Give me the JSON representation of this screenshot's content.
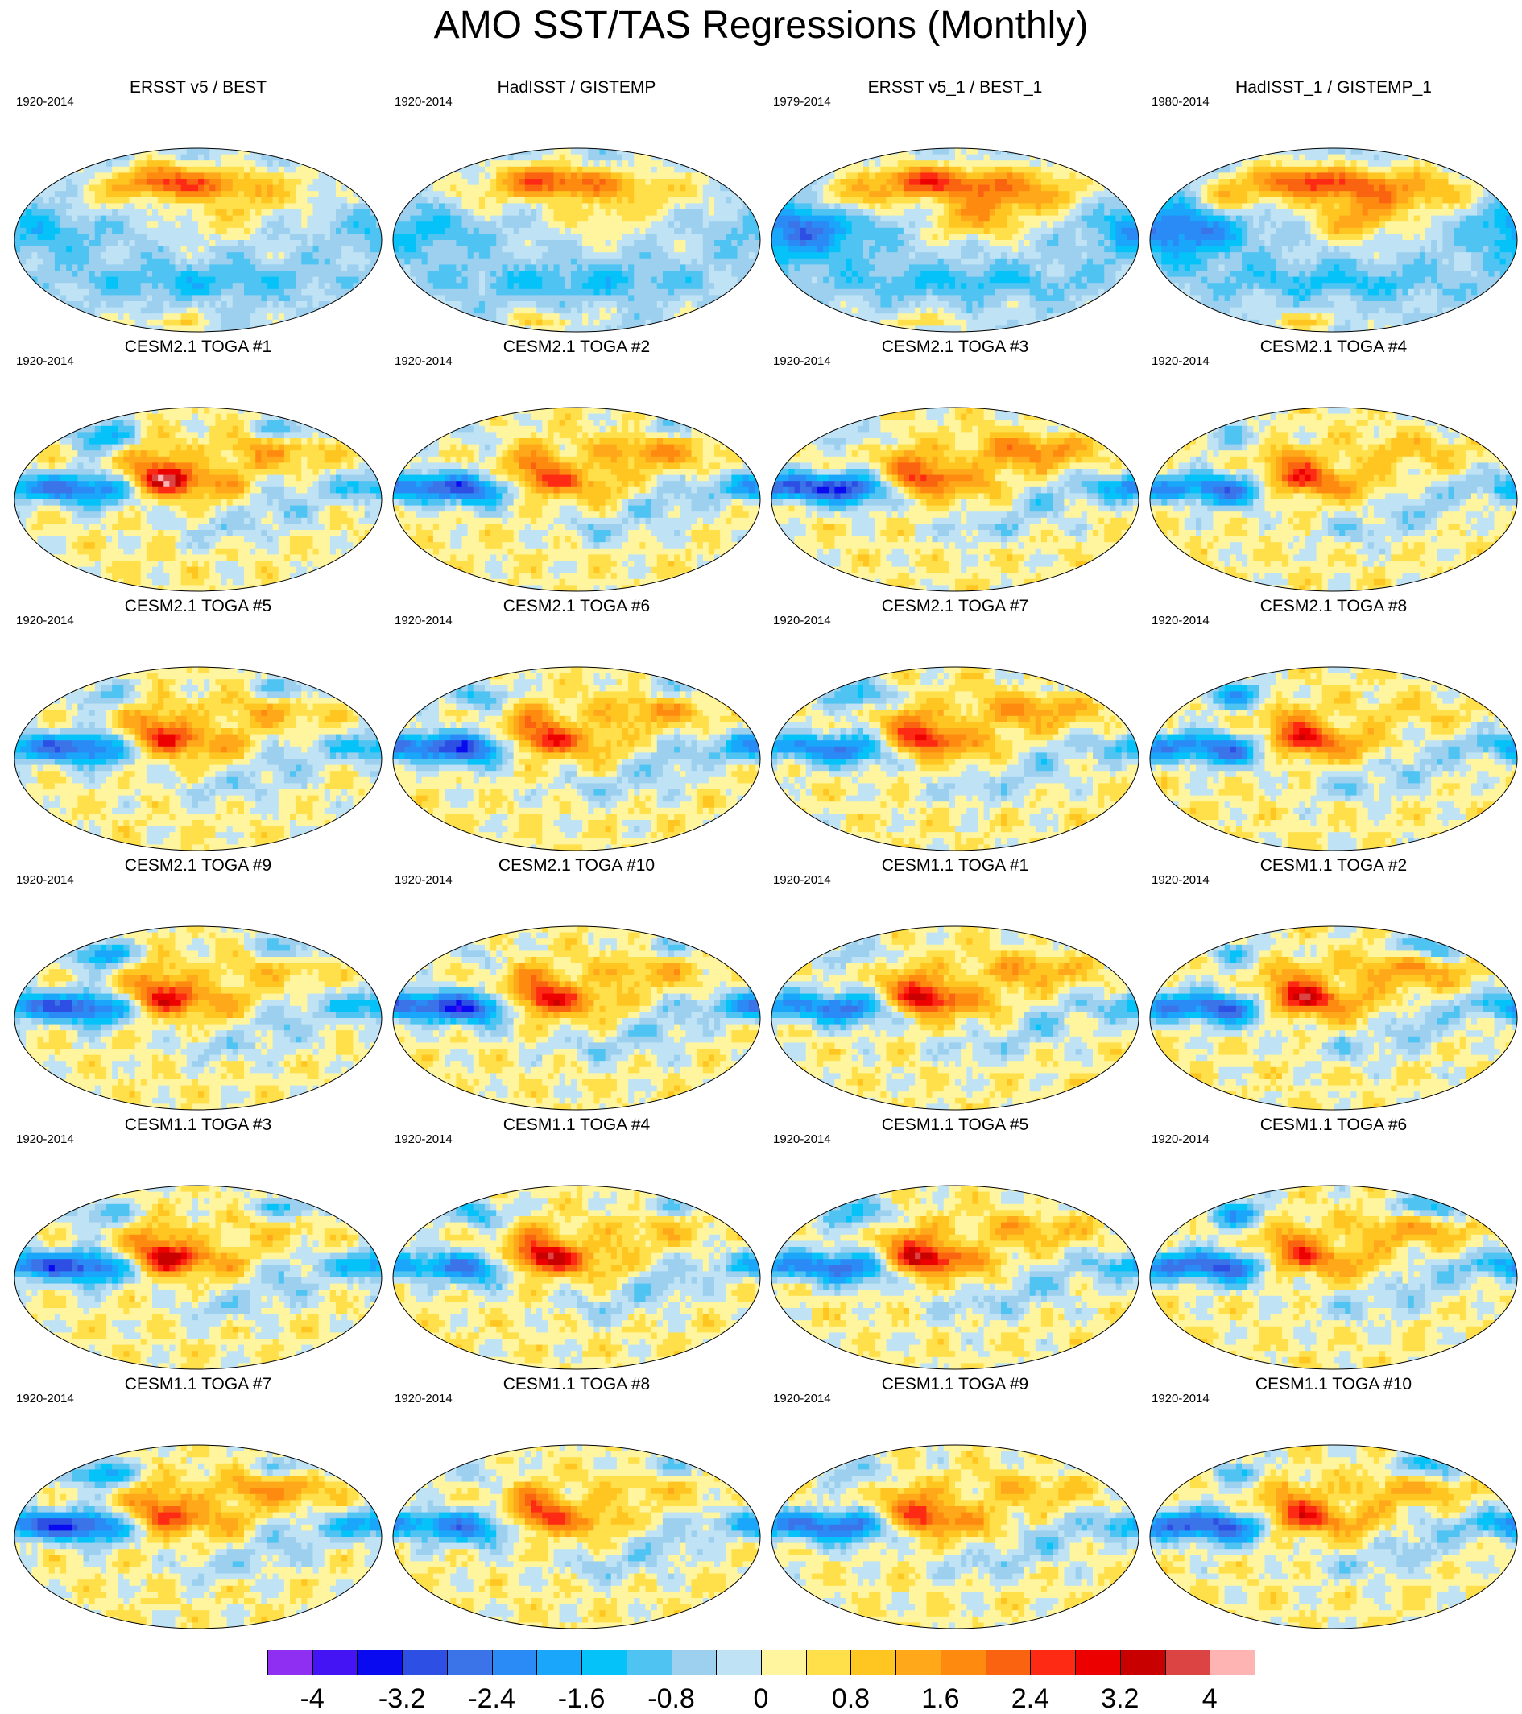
{
  "title": "AMO SST/TAS Regressions (Monthly)",
  "projection": "robinson",
  "panels": [
    {
      "title": "ERSST v5 / BEST",
      "period": "1920-2014",
      "pattern": "obs"
    },
    {
      "title": "HadISST / GISTEMP",
      "period": "1920-2014",
      "pattern": "obs"
    },
    {
      "title": "ERSST v5_1 / BEST_1",
      "period": "1979-2014",
      "pattern": "obs-recent"
    },
    {
      "title": "HadISST_1 / GISTEMP_1",
      "period": "1980-2014",
      "pattern": "obs-recent"
    },
    {
      "title": "CESM2.1 TOGA #1",
      "period": "1920-2014",
      "pattern": "model"
    },
    {
      "title": "CESM2.1 TOGA #2",
      "period": "1920-2014",
      "pattern": "model"
    },
    {
      "title": "CESM2.1 TOGA #3",
      "period": "1920-2014",
      "pattern": "model"
    },
    {
      "title": "CESM2.1 TOGA #4",
      "period": "1920-2014",
      "pattern": "model"
    },
    {
      "title": "CESM2.1 TOGA #5",
      "period": "1920-2014",
      "pattern": "model"
    },
    {
      "title": "CESM2.1 TOGA #6",
      "period": "1920-2014",
      "pattern": "model"
    },
    {
      "title": "CESM2.1 TOGA #7",
      "period": "1920-2014",
      "pattern": "model"
    },
    {
      "title": "CESM2.1 TOGA #8",
      "period": "1920-2014",
      "pattern": "model"
    },
    {
      "title": "CESM2.1 TOGA #9",
      "period": "1920-2014",
      "pattern": "model"
    },
    {
      "title": "CESM2.1 TOGA #10",
      "period": "1920-2014",
      "pattern": "model"
    },
    {
      "title": "CESM1.1 TOGA #1",
      "period": "1920-2014",
      "pattern": "model"
    },
    {
      "title": "CESM1.1 TOGA #2",
      "period": "1920-2014",
      "pattern": "model"
    },
    {
      "title": "CESM1.1 TOGA #3",
      "period": "1920-2014",
      "pattern": "model"
    },
    {
      "title": "CESM1.1 TOGA #4",
      "period": "1920-2014",
      "pattern": "model"
    },
    {
      "title": "CESM1.1 TOGA #5",
      "period": "1920-2014",
      "pattern": "model"
    },
    {
      "title": "CESM1.1 TOGA #6",
      "period": "1920-2014",
      "pattern": "model"
    },
    {
      "title": "CESM1.1 TOGA #7",
      "period": "1920-2014",
      "pattern": "model"
    },
    {
      "title": "CESM1.1 TOGA #8",
      "period": "1920-2014",
      "pattern": "model"
    },
    {
      "title": "CESM1.1 TOGA #9",
      "period": "1920-2014",
      "pattern": "model"
    },
    {
      "title": "CESM1.1 TOGA #10",
      "period": "1920-2014",
      "pattern": "model"
    }
  ],
  "colorbar": {
    "colors": [
      "#8e2ff2",
      "#4514f5",
      "#0a0af0",
      "#2d4fe3",
      "#3a74e8",
      "#2a8af6",
      "#1aa6fa",
      "#05c2f8",
      "#4fc4f2",
      "#9cd0ee",
      "#bfe3f5",
      "#fff59e",
      "#ffe04a",
      "#ffc622",
      "#ffa81a",
      "#ff8a10",
      "#fa6410",
      "#ff2a14",
      "#ec0000",
      "#c80000",
      "#dc4444",
      "#ffb4b4"
    ],
    "labels": [
      "-4",
      "-3.2",
      "-2.4",
      "-1.6",
      "-0.8",
      "0",
      "0.8",
      "1.6",
      "2.4",
      "3.2",
      "4"
    ],
    "levels": [
      -4,
      -3.6,
      -3.2,
      -2.8,
      -2.4,
      -2,
      -1.6,
      -1.2,
      -0.8,
      -0.4,
      0,
      0.4,
      0.8,
      1.2,
      1.6,
      2,
      2.4,
      2.8,
      3.2,
      3.6,
      4
    ]
  }
}
